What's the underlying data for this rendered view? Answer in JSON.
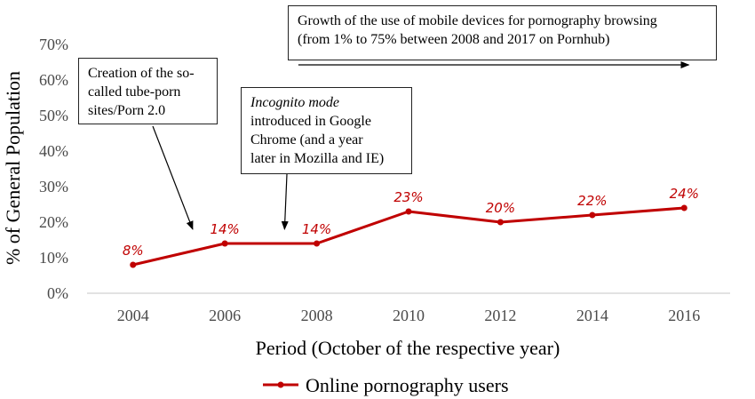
{
  "chart_data": {
    "type": "line",
    "x": [
      2004,
      2006,
      2008,
      2010,
      2012,
      2014,
      2016
    ],
    "series": [
      {
        "name": "Online pornography users",
        "values": [
          8,
          14,
          14,
          23,
          20,
          22,
          24
        ],
        "data_labels": [
          "8%",
          "14%",
          "14%",
          "23%",
          "20%",
          "22%",
          "24%"
        ],
        "color": "#c00000"
      }
    ],
    "ylim": [
      0,
      70
    ],
    "y_ticks": [
      "0%",
      "10%",
      "20%",
      "30%",
      "40%",
      "50%",
      "60%",
      "70%"
    ],
    "x_ticks": [
      "2004",
      "2006",
      "2008",
      "2010",
      "2012",
      "2014",
      "2016"
    ],
    "xlabel": "Period (October of the respective year)",
    "ylabel": "% of General Population",
    "grid": false,
    "legend_position": "bottom"
  },
  "annotations": {
    "tube_sites": {
      "lines": [
        "Creation of the so-",
        "called tube-porn",
        "sites/Porn 2.0"
      ],
      "points_to_year": 2005.3
    },
    "incognito": {
      "line1_italic": "Incognito mode",
      "lines": [
        "introduced in Google",
        "Chrome (and a year",
        "later in Mozilla and IE)"
      ],
      "points_to_year": 2007.3
    },
    "mobile": {
      "lines": [
        "Growth of the use of mobile devices for pornography browsing",
        "(from 1% to 75% between 2008 and 2017 on Pornhub)"
      ],
      "arrow_from_year": 2007.6,
      "arrow_to_year": 2016.1
    }
  },
  "colors": {
    "series": "#c00000",
    "axis": "#d9d9d9",
    "ticks": "#4a4a4a"
  }
}
